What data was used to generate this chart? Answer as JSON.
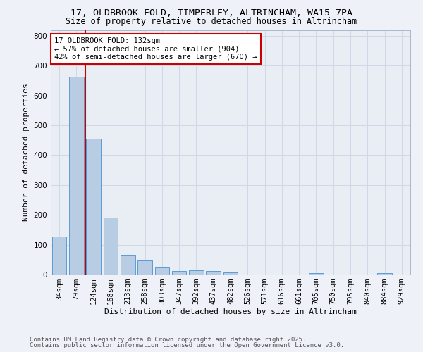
{
  "title_line1": "17, OLDBROOK FOLD, TIMPERLEY, ALTRINCHAM, WA15 7PA",
  "title_line2": "Size of property relative to detached houses in Altrincham",
  "xlabel": "Distribution of detached houses by size in Altrincham",
  "ylabel": "Number of detached properties",
  "bar_labels": [
    "34sqm",
    "79sqm",
    "124sqm",
    "168sqm",
    "213sqm",
    "258sqm",
    "303sqm",
    "347sqm",
    "392sqm",
    "437sqm",
    "482sqm",
    "526sqm",
    "571sqm",
    "616sqm",
    "661sqm",
    "705sqm",
    "750sqm",
    "795sqm",
    "840sqm",
    "884sqm",
    "929sqm"
  ],
  "bar_values": [
    128,
    662,
    455,
    190,
    65,
    48,
    25,
    11,
    13,
    12,
    6,
    0,
    0,
    0,
    0,
    5,
    0,
    0,
    0,
    5,
    0
  ],
  "bar_color": "#b8cce4",
  "bar_edge_color": "#5b9bd5",
  "annotation_line1": "17 OLDBROOK FOLD: 132sqm",
  "annotation_line2": "← 57% of detached houses are smaller (904)",
  "annotation_line3": "42% of semi-detached houses are larger (670) →",
  "annotation_box_color": "#ffffff",
  "annotation_box_edge_color": "#cc0000",
  "vline_color": "#cc0000",
  "ylim": [
    0,
    820
  ],
  "yticks": [
    0,
    100,
    200,
    300,
    400,
    500,
    600,
    700,
    800
  ],
  "grid_color": "#d0d8e8",
  "plot_bg_color": "#e8eef4",
  "fig_bg_color": "#eef1f8",
  "footer_line1": "Contains HM Land Registry data © Crown copyright and database right 2025.",
  "footer_line2": "Contains public sector information licensed under the Open Government Licence v3.0.",
  "title_fontsize": 9.5,
  "subtitle_fontsize": 8.5,
  "axis_label_fontsize": 8,
  "tick_fontsize": 7.5,
  "annotation_fontsize": 7.5,
  "footer_fontsize": 6.5
}
